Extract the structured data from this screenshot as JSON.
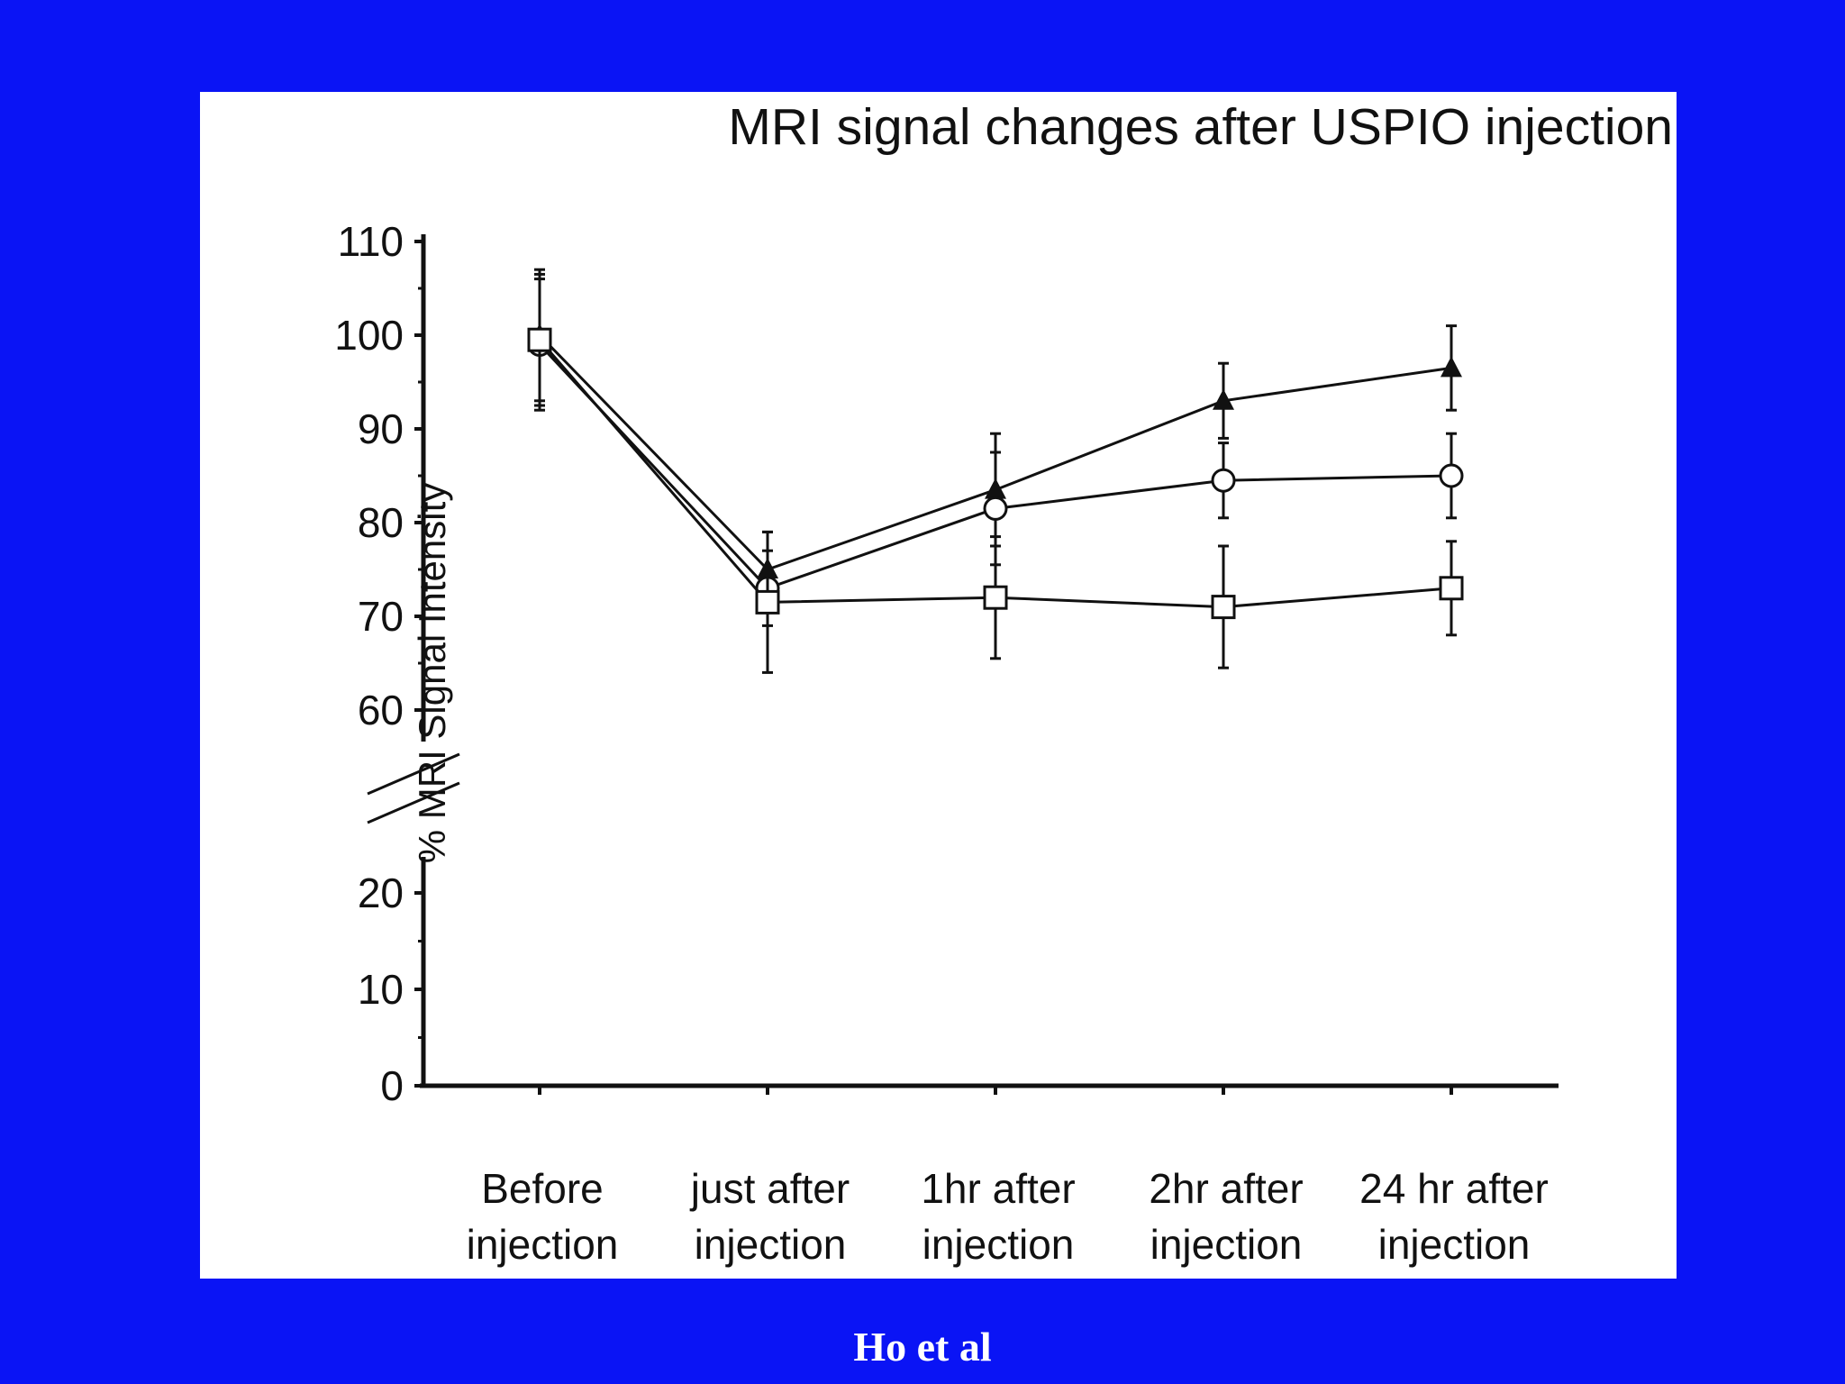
{
  "slide": {
    "background_color": "#0a14f5",
    "credit": "Ho et al"
  },
  "chart_data": {
    "type": "line",
    "title": "MRI signal changes after USPIO injection",
    "ylabel": "% MRI Signal Intensity",
    "xlabel": "",
    "categories": [
      [
        "Before",
        "injection"
      ],
      [
        "just after",
        "injection"
      ],
      [
        "1hr after",
        "injection"
      ],
      [
        "2hr after",
        "injection"
      ],
      [
        "24 hr after",
        "injection"
      ]
    ],
    "y_ticks_lower": [
      0,
      10,
      20
    ],
    "y_ticks_upper": [
      60,
      70,
      80,
      90,
      100,
      110
    ],
    "y_axis_break": [
      20,
      60
    ],
    "ylim": [
      0,
      110
    ],
    "grid": false,
    "legend": "none",
    "series": [
      {
        "marker": "filled-triangle",
        "values": [
          100,
          75,
          83.5,
          93,
          96.5
        ],
        "error": [
          7,
          4,
          6,
          4,
          4.5
        ]
      },
      {
        "marker": "open-circle",
        "values": [
          99,
          73,
          81.5,
          84.5,
          85
        ],
        "error": [
          7,
          4,
          6,
          4,
          4.5
        ]
      },
      {
        "marker": "open-square",
        "values": [
          99.5,
          71.5,
          72,
          71,
          73
        ],
        "error": [
          7,
          7.5,
          6.5,
          6.5,
          5
        ]
      }
    ]
  }
}
